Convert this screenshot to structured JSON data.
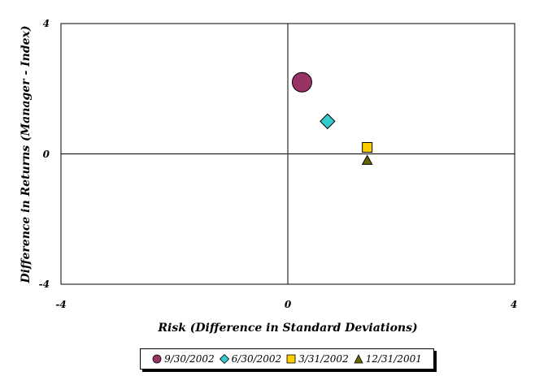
{
  "chart_data": {
    "type": "scatter",
    "title": "",
    "xlabel": "Risk (Difference in Standard Deviations)",
    "ylabel": "Difference in Returns (Manager - Index)",
    "xlim": [
      -4,
      4
    ],
    "ylim": [
      -4,
      4
    ],
    "x_ticks": [
      "-4",
      "0",
      "4"
    ],
    "y_ticks": [
      "4",
      "0",
      "-4"
    ],
    "grid": false,
    "legend_position": "bottom",
    "series": [
      {
        "name": "9/30/2002",
        "x": 0.25,
        "y": 2.2,
        "marker": "circle",
        "color": "#993366",
        "size": "large"
      },
      {
        "name": "6/30/2002",
        "x": 0.7,
        "y": 1.0,
        "marker": "diamond",
        "color": "#33cccc",
        "size": "medium"
      },
      {
        "name": "3/31/2002",
        "x": 1.4,
        "y": 0.2,
        "marker": "square",
        "color": "#ffcc00",
        "size": "small"
      },
      {
        "name": "12/31/2001",
        "x": 1.4,
        "y": -0.2,
        "marker": "triangle",
        "color": "#666600",
        "size": "small"
      }
    ]
  }
}
